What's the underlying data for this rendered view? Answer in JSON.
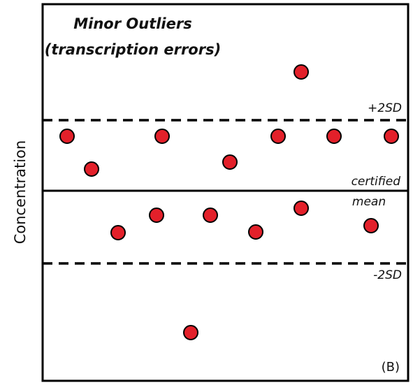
{
  "title": {
    "line1": "Minor Outliers",
    "line2": "(transcription errors)"
  },
  "axis_label": "Concentration",
  "lines": {
    "upper": "+2SD",
    "center_line1": "certified",
    "center_line2": "mean",
    "lower": "-2SD"
  },
  "panel_label": "(B)"
}
